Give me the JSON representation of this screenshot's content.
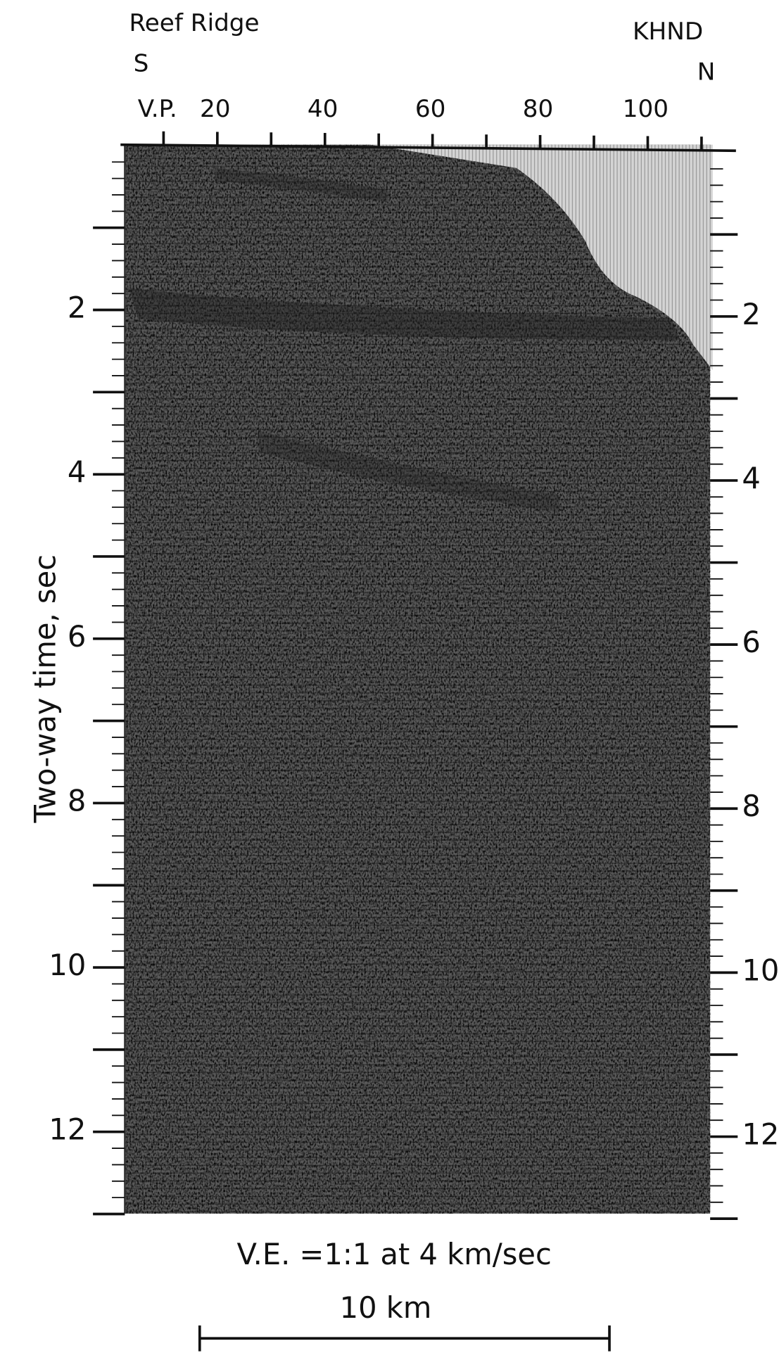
{
  "header": {
    "left_title": "Reef Ridge",
    "left_direction": "S",
    "right_title": "KHND",
    "right_direction": "N"
  },
  "top_axis": {
    "label": "V.P.",
    "ticks": [
      "20",
      "40",
      "60",
      "80",
      "100"
    ]
  },
  "left_axis": {
    "label": "Two-way time, sec",
    "ticks": [
      "2",
      "4",
      "6",
      "8",
      "10",
      "12"
    ]
  },
  "right_axis": {
    "ticks": [
      "2",
      "4",
      "6",
      "8",
      "10",
      "12"
    ]
  },
  "footer": {
    "exaggeration": "V.E. =1:1 at 4 km/sec",
    "scale_bar": "10 km"
  }
}
